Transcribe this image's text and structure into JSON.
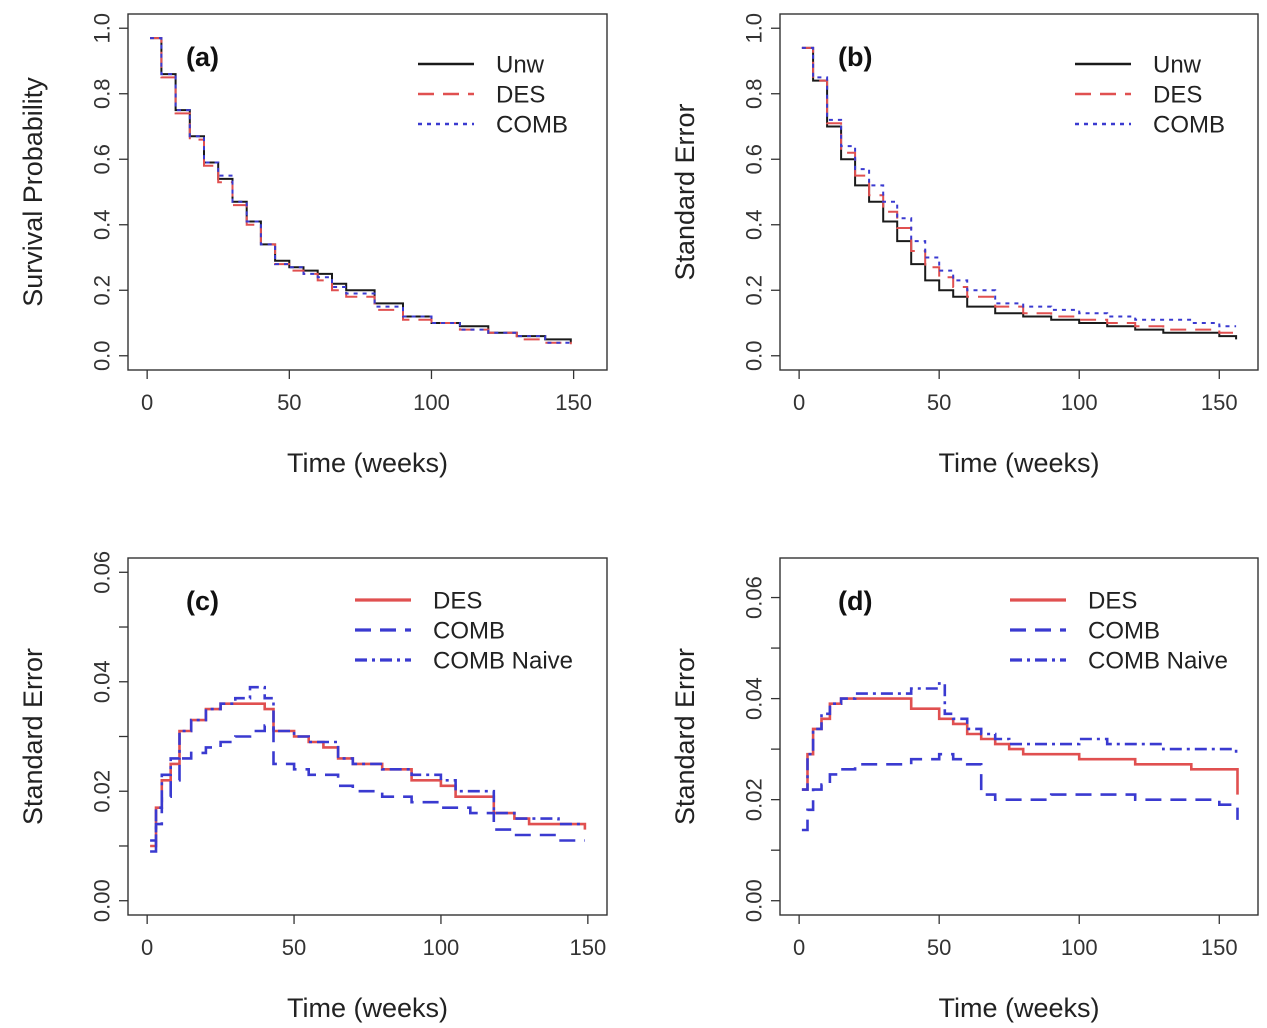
{
  "colors": {
    "Unw": "#1a1a1a",
    "DES": "#e05050",
    "COMB": "#3a3ad0",
    "COMB Naive": "#3a3ad0"
  },
  "chart_data": [
    {
      "type": "line",
      "panel": "(a)",
      "xlabel": "Time (weeks)",
      "ylabel": "Survival Probability",
      "xlim": [
        0,
        155
      ],
      "ylim": [
        0,
        1.0
      ],
      "xticks": [
        0,
        50,
        100,
        150
      ],
      "yticks": [
        0.0,
        0.2,
        0.4,
        0.6,
        0.8,
        1.0
      ],
      "yticklabels": [
        "0.0",
        "0.2",
        "0.4",
        "0.6",
        "0.8",
        "1.0"
      ],
      "legend": "top-right",
      "series": [
        {
          "name": "Unw",
          "style": "solid",
          "x": [
            1,
            5,
            10,
            15,
            20,
            25,
            30,
            35,
            40,
            45,
            50,
            55,
            60,
            65,
            70,
            80,
            90,
            100,
            110,
            120,
            130,
            140,
            149
          ],
          "y": [
            0.97,
            0.86,
            0.75,
            0.67,
            0.59,
            0.54,
            0.47,
            0.41,
            0.34,
            0.29,
            0.27,
            0.26,
            0.25,
            0.22,
            0.2,
            0.16,
            0.12,
            0.1,
            0.09,
            0.07,
            0.06,
            0.05,
            0.04
          ]
        },
        {
          "name": "DES",
          "style": "dashed",
          "x": [
            1,
            5,
            10,
            15,
            20,
            25,
            30,
            35,
            40,
            45,
            50,
            55,
            60,
            65,
            70,
            80,
            90,
            100,
            110,
            120,
            130,
            140,
            149
          ],
          "y": [
            0.97,
            0.85,
            0.74,
            0.66,
            0.58,
            0.53,
            0.46,
            0.4,
            0.34,
            0.28,
            0.26,
            0.25,
            0.23,
            0.2,
            0.18,
            0.14,
            0.11,
            0.1,
            0.08,
            0.07,
            0.05,
            0.04,
            0.035
          ]
        },
        {
          "name": "COMB",
          "style": "dotted",
          "x": [
            1,
            5,
            10,
            15,
            20,
            25,
            30,
            35,
            40,
            45,
            50,
            55,
            60,
            65,
            70,
            80,
            90,
            100,
            110,
            120,
            130,
            140,
            149
          ],
          "y": [
            0.97,
            0.86,
            0.75,
            0.67,
            0.59,
            0.55,
            0.47,
            0.41,
            0.34,
            0.28,
            0.27,
            0.25,
            0.24,
            0.21,
            0.19,
            0.15,
            0.12,
            0.1,
            0.08,
            0.07,
            0.06,
            0.04,
            0.04
          ]
        }
      ]
    },
    {
      "type": "line",
      "panel": "(b)",
      "xlabel": "Time (weeks)",
      "ylabel": "Standard Error",
      "xlim": [
        0,
        157
      ],
      "ylim": [
        0,
        1.0
      ],
      "xticks": [
        0,
        50,
        100,
        150
      ],
      "yticks": [
        0.0,
        0.2,
        0.4,
        0.6,
        0.8,
        1.0
      ],
      "yticklabels": [
        "0.0",
        "0.2",
        "0.4",
        "0.6",
        "0.8",
        "1.0"
      ],
      "legend": "top-right",
      "series": [
        {
          "name": "Unw",
          "style": "solid",
          "x": [
            1,
            5,
            10,
            15,
            20,
            25,
            30,
            35,
            40,
            45,
            50,
            55,
            60,
            70,
            80,
            90,
            100,
            110,
            120,
            130,
            140,
            150,
            156
          ],
          "y": [
            0.94,
            0.84,
            0.7,
            0.6,
            0.52,
            0.47,
            0.41,
            0.35,
            0.28,
            0.23,
            0.2,
            0.18,
            0.15,
            0.13,
            0.12,
            0.11,
            0.1,
            0.09,
            0.08,
            0.07,
            0.07,
            0.06,
            0.05
          ]
        },
        {
          "name": "DES",
          "style": "dashed",
          "x": [
            1,
            5,
            10,
            15,
            20,
            25,
            30,
            35,
            40,
            45,
            50,
            55,
            60,
            70,
            80,
            90,
            100,
            110,
            120,
            130,
            140,
            150,
            156
          ],
          "y": [
            0.94,
            0.84,
            0.71,
            0.62,
            0.55,
            0.49,
            0.44,
            0.39,
            0.32,
            0.27,
            0.24,
            0.21,
            0.18,
            0.15,
            0.13,
            0.12,
            0.11,
            0.1,
            0.09,
            0.08,
            0.08,
            0.07,
            0.07
          ]
        },
        {
          "name": "COMB",
          "style": "dotted",
          "x": [
            1,
            5,
            10,
            15,
            20,
            25,
            30,
            35,
            40,
            45,
            50,
            55,
            60,
            70,
            80,
            90,
            100,
            110,
            120,
            130,
            140,
            150,
            156
          ],
          "y": [
            0.94,
            0.85,
            0.72,
            0.64,
            0.57,
            0.52,
            0.47,
            0.42,
            0.35,
            0.3,
            0.26,
            0.23,
            0.2,
            0.16,
            0.15,
            0.14,
            0.13,
            0.12,
            0.11,
            0.11,
            0.1,
            0.09,
            0.09
          ]
        }
      ]
    },
    {
      "type": "line",
      "panel": "(c)",
      "xlabel": "Time (weeks)",
      "ylabel": "Standard Error",
      "xlim": [
        0,
        150
      ],
      "ylim": [
        0,
        0.06
      ],
      "xticks": [
        0,
        50,
        100,
        150
      ],
      "yticks": [
        0.0,
        0.01,
        0.02,
        0.03,
        0.04,
        0.05,
        0.06
      ],
      "yticklabels": [
        "0.00",
        "",
        "0.02",
        "",
        "0.04",
        "",
        "0.06"
      ],
      "legend": "top-right",
      "series": [
        {
          "name": "DES",
          "style": "solid",
          "x": [
            1,
            3,
            5,
            8,
            11,
            15,
            20,
            25,
            30,
            35,
            40,
            43,
            50,
            55,
            60,
            65,
            70,
            80,
            90,
            100,
            105,
            110,
            118,
            125,
            130,
            140,
            149
          ],
          "y": [
            0.01,
            0.017,
            0.022,
            0.025,
            0.031,
            0.033,
            0.035,
            0.036,
            0.036,
            0.036,
            0.035,
            0.031,
            0.03,
            0.029,
            0.028,
            0.026,
            0.025,
            0.024,
            0.022,
            0.021,
            0.019,
            0.019,
            0.016,
            0.015,
            0.014,
            0.014,
            0.013
          ]
        },
        {
          "name": "COMB",
          "style": "dashed",
          "x": [
            1,
            3,
            5,
            8,
            11,
            15,
            20,
            25,
            30,
            35,
            40,
            43,
            50,
            55,
            60,
            65,
            70,
            80,
            90,
            100,
            105,
            110,
            118,
            125,
            130,
            140,
            149
          ],
          "y": [
            0.009,
            0.014,
            0.019,
            0.022,
            0.026,
            0.027,
            0.028,
            0.029,
            0.03,
            0.031,
            0.032,
            0.025,
            0.024,
            0.023,
            0.023,
            0.021,
            0.02,
            0.019,
            0.018,
            0.017,
            0.017,
            0.016,
            0.013,
            0.012,
            0.012,
            0.011,
            0.011
          ]
        },
        {
          "name": "COMB Naive",
          "style": "dotdash",
          "x": [
            1,
            3,
            5,
            8,
            11,
            15,
            20,
            25,
            30,
            35,
            40,
            43,
            50,
            55,
            60,
            65,
            70,
            80,
            90,
            100,
            105,
            110,
            118,
            125,
            130,
            140,
            149
          ],
          "y": [
            0.011,
            0.017,
            0.023,
            0.026,
            0.031,
            0.033,
            0.035,
            0.036,
            0.037,
            0.039,
            0.037,
            0.031,
            0.03,
            0.029,
            0.029,
            0.026,
            0.025,
            0.024,
            0.023,
            0.022,
            0.02,
            0.02,
            0.016,
            0.015,
            0.015,
            0.014,
            0.014
          ]
        }
      ]
    },
    {
      "type": "line",
      "panel": "(d)",
      "xlabel": "Time (weeks)",
      "ylabel": "Standard Error",
      "xlim": [
        0,
        157
      ],
      "ylim": [
        0,
        0.065
      ],
      "xticks": [
        0,
        50,
        100,
        150
      ],
      "yticks": [
        0.0,
        0.01,
        0.02,
        0.03,
        0.04,
        0.05,
        0.06
      ],
      "yticklabels": [
        "0.00",
        "",
        "0.02",
        "",
        "0.04",
        "",
        "0.06"
      ],
      "legend": "top-right",
      "series": [
        {
          "name": "DES",
          "style": "solid",
          "x": [
            1,
            3,
            5,
            8,
            11,
            15,
            20,
            25,
            30,
            40,
            50,
            55,
            60,
            65,
            70,
            75,
            80,
            90,
            100,
            110,
            120,
            130,
            140,
            150,
            156,
            156.5
          ],
          "y": [
            0.022,
            0.029,
            0.034,
            0.036,
            0.039,
            0.04,
            0.04,
            0.04,
            0.04,
            0.038,
            0.036,
            0.035,
            0.033,
            0.032,
            0.031,
            0.03,
            0.029,
            0.029,
            0.028,
            0.028,
            0.027,
            0.027,
            0.026,
            0.026,
            0.026,
            0.021
          ]
        },
        {
          "name": "COMB",
          "style": "dashed",
          "x": [
            1,
            3,
            5,
            8,
            11,
            15,
            20,
            25,
            30,
            40,
            50,
            55,
            60,
            65,
            70,
            75,
            80,
            90,
            100,
            110,
            120,
            130,
            140,
            150,
            156,
            156.5
          ],
          "y": [
            0.014,
            0.018,
            0.022,
            0.023,
            0.025,
            0.026,
            0.027,
            0.027,
            0.027,
            0.028,
            0.029,
            0.028,
            0.027,
            0.021,
            0.02,
            0.02,
            0.02,
            0.021,
            0.021,
            0.021,
            0.02,
            0.02,
            0.02,
            0.019,
            0.019,
            0.016
          ]
        },
        {
          "name": "COMB Naive",
          "style": "dotdash",
          "x": [
            1,
            3,
            5,
            8,
            11,
            15,
            20,
            25,
            30,
            40,
            50,
            52,
            55,
            60,
            65,
            70,
            75,
            80,
            90,
            100,
            110,
            120,
            130,
            140,
            150,
            156
          ],
          "y": [
            0.022,
            0.029,
            0.034,
            0.037,
            0.039,
            0.04,
            0.041,
            0.041,
            0.041,
            0.042,
            0.043,
            0.037,
            0.036,
            0.034,
            0.033,
            0.032,
            0.031,
            0.031,
            0.031,
            0.032,
            0.031,
            0.031,
            0.03,
            0.03,
            0.03,
            0.029
          ]
        }
      ]
    }
  ]
}
